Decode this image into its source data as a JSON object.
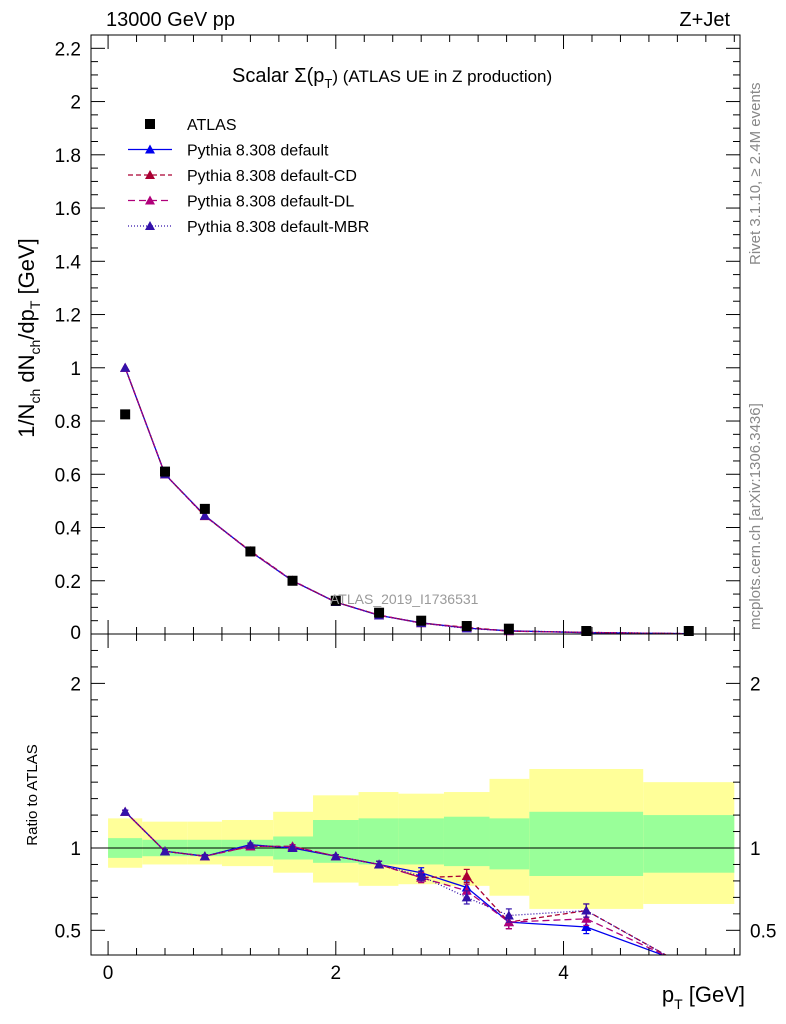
{
  "header": {
    "left": "13000 GeV pp",
    "right": "Z+Jet"
  },
  "side_labels": {
    "rivet": "Rivet 3.1.10, ≥ 2.4M events",
    "mcplots": "mcplots.cern.ch [arXiv:1306.3436]"
  },
  "chart_data": [
    {
      "type": "scatter",
      "title": "Scalar Σ(p",
      "title_sub": "T",
      "title_tail": ") (ATLAS UE in Z production)",
      "watermark": "ATLAS_2019_I1736531",
      "ylabel": "1/N",
      "ylabel_parts": [
        "1/N",
        "ch",
        " dN",
        "ch",
        "/dp",
        "T",
        " [GeV]"
      ],
      "xlabel": "p",
      "xlabel_sub": "T",
      "xlabel_tail": " [GeV]",
      "xlim": [
        -0.15,
        5.55
      ],
      "ylim": [
        0,
        2.25
      ],
      "yticks": [
        0.2,
        0.4,
        0.6,
        0.8,
        1,
        1.2,
        1.4,
        1.6,
        1.8,
        2,
        2.2
      ],
      "ytick_labels": [
        "0.2",
        "0.4",
        "0.6",
        "0.8",
        "1",
        "1.2",
        "1.4",
        "1.6",
        "1.8",
        "2",
        "2.2"
      ],
      "y_zero_label": "0",
      "legend_position": "top-left",
      "legend": [
        {
          "label": "ATLAS",
          "color": "#000000",
          "marker": "square",
          "dash": ""
        },
        {
          "label": "Pythia 8.308 default",
          "color": "#0000ee",
          "marker": "triangle",
          "dash": ""
        },
        {
          "label": "Pythia 8.308 default-CD",
          "color": "#aa0033",
          "marker": "triangle",
          "dash": "5,3"
        },
        {
          "label": "Pythia 8.308 default-DL",
          "color": "#b0007a",
          "marker": "triangle",
          "dash": "7,4"
        },
        {
          "label": "Pythia 8.308 default-MBR",
          "color": "#3311aa",
          "marker": "triangle",
          "dash": "1,2"
        }
      ],
      "data": {
        "name": "ATLAS",
        "x": [
          0.15,
          0.5,
          0.85,
          1.25,
          1.62,
          2.0,
          2.38,
          2.75,
          3.15,
          3.52,
          4.2,
          5.1
        ],
        "y": [
          0.825,
          0.61,
          0.47,
          0.31,
          0.2,
          0.125,
          0.08,
          0.05,
          0.03,
          0.02,
          0.01,
          0.004
        ]
      },
      "series": [
        {
          "name": "Pythia 8.308 default",
          "color": "#0000ee",
          "dash": "",
          "x": [
            0.15,
            0.5,
            0.85,
            1.25,
            1.62,
            2.0,
            2.38,
            2.75,
            3.15,
            3.52,
            4.2,
            5.1
          ],
          "y": [
            1.0,
            0.6,
            0.445,
            0.31,
            0.2,
            0.12,
            0.07,
            0.042,
            0.022,
            0.012,
            0.005,
            0.001
          ]
        },
        {
          "name": "Pythia 8.308 default-CD",
          "color": "#aa0033",
          "dash": "5,3",
          "x": [
            0.15,
            0.5,
            0.85,
            1.25,
            1.62,
            2.0,
            2.38,
            2.75,
            3.15,
            3.52,
            4.2,
            5.1
          ],
          "y": [
            1.0,
            0.6,
            0.443,
            0.312,
            0.201,
            0.12,
            0.071,
            0.041,
            0.025,
            0.011,
            0.006,
            0.001
          ]
        },
        {
          "name": "Pythia 8.308 default-DL",
          "color": "#b0007a",
          "dash": "7,4",
          "x": [
            0.15,
            0.5,
            0.85,
            1.25,
            1.62,
            2.0,
            2.38,
            2.75,
            3.15,
            3.52,
            4.2,
            5.1
          ],
          "y": [
            1.0,
            0.6,
            0.444,
            0.31,
            0.2,
            0.12,
            0.071,
            0.041,
            0.023,
            0.011,
            0.006,
            0.001
          ]
        },
        {
          "name": "Pythia 8.308 default-MBR",
          "color": "#3311aa",
          "dash": "1,2",
          "x": [
            0.15,
            0.5,
            0.85,
            1.25,
            1.62,
            2.0,
            2.38,
            2.75,
            3.15,
            3.52,
            4.2,
            5.1
          ],
          "y": [
            1.0,
            0.6,
            0.444,
            0.31,
            0.2,
            0.12,
            0.07,
            0.041,
            0.021,
            0.012,
            0.006,
            0.001
          ]
        }
      ]
    },
    {
      "type": "line",
      "ylabel": "Ratio to ATLAS",
      "xlim": [
        -0.15,
        5.55
      ],
      "ylim": [
        0.35,
        2.3
      ],
      "yticks": [
        0.5,
        1,
        2
      ],
      "ytick_labels": [
        "0.5",
        "1",
        "2"
      ],
      "xticks": [
        0,
        2,
        4
      ],
      "xtick_labels": [
        "0",
        "2",
        "4"
      ],
      "reference": 1,
      "bins": [
        {
          "lo": 0.0,
          "hi": 0.3,
          "yellow": [
            0.88,
            1.18
          ],
          "green": [
            0.94,
            1.06
          ]
        },
        {
          "lo": 0.3,
          "hi": 0.7,
          "yellow": [
            0.9,
            1.16
          ],
          "green": [
            0.95,
            1.05
          ]
        },
        {
          "lo": 0.7,
          "hi": 1.0,
          "yellow": [
            0.9,
            1.16
          ],
          "green": [
            0.95,
            1.05
          ]
        },
        {
          "lo": 1.0,
          "hi": 1.45,
          "yellow": [
            0.89,
            1.17
          ],
          "green": [
            0.95,
            1.05
          ]
        },
        {
          "lo": 1.45,
          "hi": 1.8,
          "yellow": [
            0.85,
            1.22
          ],
          "green": [
            0.93,
            1.07
          ]
        },
        {
          "lo": 1.8,
          "hi": 2.2,
          "yellow": [
            0.79,
            1.32
          ],
          "green": [
            0.91,
            1.17
          ]
        },
        {
          "lo": 2.2,
          "hi": 2.55,
          "yellow": [
            0.77,
            1.34
          ],
          "green": [
            0.9,
            1.18
          ]
        },
        {
          "lo": 2.55,
          "hi": 2.95,
          "yellow": [
            0.78,
            1.33
          ],
          "green": [
            0.9,
            1.18
          ]
        },
        {
          "lo": 2.95,
          "hi": 3.35,
          "yellow": [
            0.77,
            1.34
          ],
          "green": [
            0.89,
            1.19
          ]
        },
        {
          "lo": 3.35,
          "hi": 3.7,
          "yellow": [
            0.71,
            1.42
          ],
          "green": [
            0.87,
            1.18
          ]
        },
        {
          "lo": 3.7,
          "hi": 4.7,
          "yellow": [
            0.63,
            1.48
          ],
          "green": [
            0.83,
            1.22
          ]
        },
        {
          "lo": 4.7,
          "hi": 5.5,
          "yellow": [
            0.66,
            1.4
          ],
          "green": [
            0.85,
            1.2
          ]
        }
      ],
      "series": [
        {
          "name": "Pythia 8.308 default",
          "color": "#0000ee",
          "dash": "",
          "x": [
            0.15,
            0.5,
            0.85,
            1.25,
            1.62,
            2.0,
            2.38,
            2.75,
            3.15,
            3.52,
            4.2,
            4.95
          ],
          "y": [
            1.22,
            0.98,
            0.95,
            1.02,
            1.0,
            0.95,
            0.9,
            0.85,
            0.76,
            0.55,
            0.52,
            0.33
          ],
          "err": [
            0.01,
            0.01,
            0.01,
            0.01,
            0.01,
            0.01,
            0.02,
            0.03,
            0.04,
            0.04,
            0.04,
            0
          ]
        },
        {
          "name": "Pythia 8.308 default-CD",
          "color": "#aa0033",
          "dash": "5,3",
          "x": [
            0.15,
            0.5,
            0.85,
            1.25,
            1.62,
            2.0,
            2.38,
            2.75,
            3.15,
            3.52,
            4.2,
            4.95
          ],
          "y": [
            1.22,
            0.98,
            0.95,
            1.01,
            1.01,
            0.95,
            0.9,
            0.82,
            0.83,
            0.55,
            0.62,
            0.33
          ],
          "err": [
            0.01,
            0.01,
            0.01,
            0.01,
            0.01,
            0.01,
            0.02,
            0.03,
            0.04,
            0.04,
            0.04,
            0
          ]
        },
        {
          "name": "Pythia 8.308 default-DL",
          "color": "#b0007a",
          "dash": "7,4",
          "x": [
            0.15,
            0.5,
            0.85,
            1.25,
            1.62,
            2.0,
            2.38,
            2.75,
            3.15,
            3.52,
            4.2,
            4.95
          ],
          "y": [
            1.22,
            0.98,
            0.95,
            1.01,
            1.01,
            0.95,
            0.9,
            0.82,
            0.74,
            0.55,
            0.57,
            0.33
          ],
          "err": [
            0.01,
            0.01,
            0.01,
            0.01,
            0.01,
            0.01,
            0.02,
            0.03,
            0.04,
            0.04,
            0.04,
            0
          ]
        },
        {
          "name": "Pythia 8.308 default-MBR",
          "color": "#3311aa",
          "dash": "1,2",
          "x": [
            0.15,
            0.5,
            0.85,
            1.25,
            1.62,
            2.0,
            2.38,
            2.75,
            3.15,
            3.52,
            4.2,
            4.95
          ],
          "y": [
            1.22,
            0.98,
            0.95,
            1.02,
            1.0,
            0.95,
            0.9,
            0.83,
            0.7,
            0.59,
            0.62,
            0.33
          ],
          "err": [
            0.01,
            0.01,
            0.01,
            0.01,
            0.01,
            0.01,
            0.02,
            0.03,
            0.04,
            0.04,
            0.04,
            0
          ]
        }
      ]
    }
  ]
}
